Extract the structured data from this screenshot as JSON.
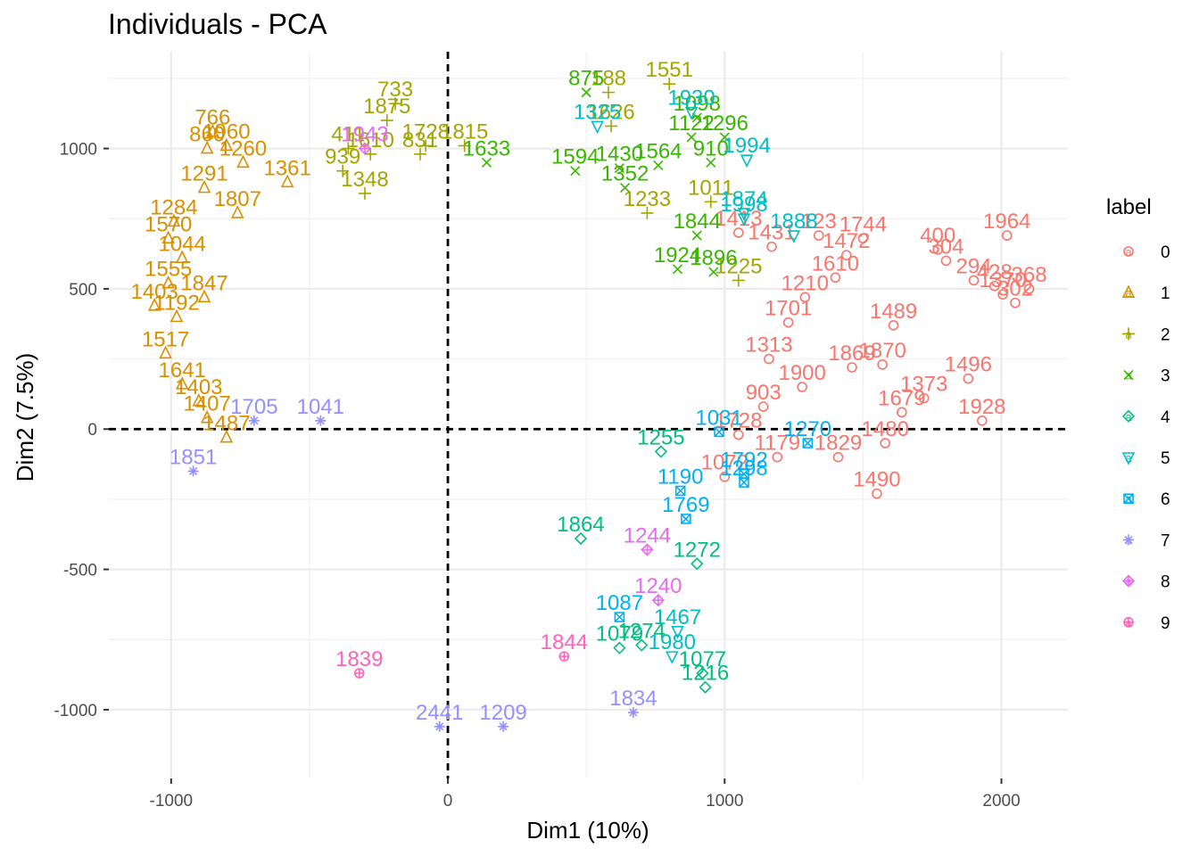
{
  "chart_data": {
    "type": "scatter",
    "title": "Individuals - PCA",
    "xlabel": "Dim1 (10%)",
    "ylabel": "Dim2 (7.5%)",
    "xlim": [
      -1225,
      2240
    ],
    "ylim": [
      -1245,
      1345
    ],
    "x_ticks": [
      -1000,
      0,
      1000,
      2000
    ],
    "y_ticks": [
      -1000,
      -500,
      0,
      500,
      1000
    ],
    "grid": true,
    "reference_lines": {
      "x": 0,
      "y": 0,
      "style": "dashed"
    },
    "legend": {
      "title": "label",
      "position": "right",
      "entries": [
        {
          "name": "0",
          "color": "#F8766D",
          "symbol": "circle"
        },
        {
          "name": "1",
          "color": "#D89000",
          "symbol": "triangle"
        },
        {
          "name": "2",
          "color": "#A3A500",
          "symbol": "plus"
        },
        {
          "name": "3",
          "color": "#39B600",
          "symbol": "cross"
        },
        {
          "name": "4",
          "color": "#00BF7D",
          "symbol": "diamond"
        },
        {
          "name": "5",
          "color": "#00BFC4",
          "symbol": "triangle-down"
        },
        {
          "name": "6",
          "color": "#00B0F6",
          "symbol": "square-cross"
        },
        {
          "name": "7",
          "color": "#9590FF",
          "symbol": "asterisk"
        },
        {
          "name": "8",
          "color": "#E76BF3",
          "symbol": "diamond-plus"
        },
        {
          "name": "9",
          "color": "#FF62BC",
          "symbol": "circle-plus"
        }
      ]
    },
    "points": [
      {
        "id": "1964",
        "x": 2020,
        "y": 690,
        "series": "0"
      },
      {
        "id": "400",
        "x": 1770,
        "y": 640,
        "series": "0"
      },
      {
        "id": "304",
        "x": 1800,
        "y": 600,
        "series": "0"
      },
      {
        "id": "294",
        "x": 1900,
        "y": 530,
        "series": "0"
      },
      {
        "id": "428",
        "x": 1975,
        "y": 510,
        "series": "0"
      },
      {
        "id": "368",
        "x": 2100,
        "y": 500,
        "series": "0"
      },
      {
        "id": "1370",
        "x": 2005,
        "y": 480,
        "series": "0"
      },
      {
        "id": "302",
        "x": 2050,
        "y": 450,
        "series": "0"
      },
      {
        "id": "1496",
        "x": 1880,
        "y": 180,
        "series": "0"
      },
      {
        "id": "1928",
        "x": 1930,
        "y": 30,
        "series": "0"
      },
      {
        "id": "1373",
        "x": 1720,
        "y": 110,
        "series": "0"
      },
      {
        "id": "1679",
        "x": 1640,
        "y": 60,
        "series": "0"
      },
      {
        "id": "1480",
        "x": 1580,
        "y": -50,
        "series": "0"
      },
      {
        "id": "1490",
        "x": 1550,
        "y": -230,
        "series": "0"
      },
      {
        "id": "1829",
        "x": 1410,
        "y": -100,
        "series": "0"
      },
      {
        "id": "1489",
        "x": 1610,
        "y": 370,
        "series": "0"
      },
      {
        "id": "1870",
        "x": 1570,
        "y": 230,
        "series": "0"
      },
      {
        "id": "1869",
        "x": 1460,
        "y": 220,
        "series": "0"
      },
      {
        "id": "123",
        "x": 1340,
        "y": 690,
        "series": "0"
      },
      {
        "id": "1744",
        "x": 1500,
        "y": 680,
        "series": "0"
      },
      {
        "id": "1472",
        "x": 1440,
        "y": 620,
        "series": "0"
      },
      {
        "id": "1900",
        "x": 1280,
        "y": 150,
        "series": "0"
      },
      {
        "id": "1431",
        "x": 1170,
        "y": 650,
        "series": "0"
      },
      {
        "id": "1413",
        "x": 1050,
        "y": 700,
        "series": "0"
      },
      {
        "id": "1210",
        "x": 1290,
        "y": 470,
        "series": "0"
      },
      {
        "id": "1610",
        "x": 1400,
        "y": 540,
        "series": "0"
      },
      {
        "id": "1701",
        "x": 1230,
        "y": 380,
        "series": "0"
      },
      {
        "id": "1313",
        "x": 1160,
        "y": 250,
        "series": "0"
      },
      {
        "id": "903",
        "x": 1140,
        "y": 80,
        "series": "0"
      },
      {
        "id": "1728",
        "x": 1050,
        "y": -20,
        "series": "0"
      },
      {
        "id": "1179",
        "x": 1190,
        "y": -100,
        "series": "0"
      },
      {
        "id": "1072",
        "x": 1000,
        "y": -170,
        "series": "0"
      },
      {
        "id": "766",
        "x": -850,
        "y": 1060,
        "series": "1"
      },
      {
        "id": "1960",
        "x": -800,
        "y": 1010,
        "series": "1"
      },
      {
        "id": "860",
        "x": -870,
        "y": 1000,
        "series": "1"
      },
      {
        "id": "1260",
        "x": -740,
        "y": 950,
        "series": "1"
      },
      {
        "id": "1361",
        "x": -580,
        "y": 880,
        "series": "1"
      },
      {
        "id": "1291",
        "x": -880,
        "y": 860,
        "series": "1"
      },
      {
        "id": "1807",
        "x": -760,
        "y": 770,
        "series": "1"
      },
      {
        "id": "1284",
        "x": -990,
        "y": 740,
        "series": "1"
      },
      {
        "id": "1570",
        "x": -1010,
        "y": 680,
        "series": "1"
      },
      {
        "id": "1044",
        "x": -960,
        "y": 610,
        "series": "1"
      },
      {
        "id": "1555",
        "x": -1010,
        "y": 520,
        "series": "1"
      },
      {
        "id": "1847",
        "x": -880,
        "y": 470,
        "series": "1"
      },
      {
        "id": "1403",
        "x": -1060,
        "y": 440,
        "series": "1"
      },
      {
        "id": "1192",
        "x": -980,
        "y": 400,
        "series": "1"
      },
      {
        "id": "1517",
        "x": -1020,
        "y": 270,
        "series": "1"
      },
      {
        "id": "1641",
        "x": -960,
        "y": 160,
        "series": "1"
      },
      {
        "id": "1403b",
        "x": -900,
        "y": 100,
        "series": "1"
      },
      {
        "id": "1407",
        "x": -870,
        "y": 40,
        "series": "1"
      },
      {
        "id": "1487",
        "x": -800,
        "y": -30,
        "series": "1"
      },
      {
        "id": "733",
        "x": -190,
        "y": 1160,
        "series": "2"
      },
      {
        "id": "1875",
        "x": -220,
        "y": 1100,
        "series": "2"
      },
      {
        "id": "411",
        "x": -360,
        "y": 1000,
        "series": "2"
      },
      {
        "id": "1610b",
        "x": -280,
        "y": 980,
        "series": "2"
      },
      {
        "id": "1728b",
        "x": -80,
        "y": 1010,
        "series": "2"
      },
      {
        "id": "1815",
        "x": 60,
        "y": 1010,
        "series": "2"
      },
      {
        "id": "831",
        "x": -100,
        "y": 980,
        "series": "2"
      },
      {
        "id": "939",
        "x": -380,
        "y": 920,
        "series": "2"
      },
      {
        "id": "1551",
        "x": 800,
        "y": 1230,
        "series": "2"
      },
      {
        "id": "188",
        "x": 580,
        "y": 1200,
        "series": "2"
      },
      {
        "id": "1626",
        "x": 590,
        "y": 1080,
        "series": "2"
      },
      {
        "id": "1348",
        "x": -300,
        "y": 840,
        "series": "2"
      },
      {
        "id": "1011",
        "x": 950,
        "y": 810,
        "series": "2"
      },
      {
        "id": "1233",
        "x": 720,
        "y": 770,
        "series": "2"
      },
      {
        "id": "1225",
        "x": 1050,
        "y": 530,
        "series": "2"
      },
      {
        "id": "875",
        "x": 500,
        "y": 1200,
        "series": "3"
      },
      {
        "id": "1098",
        "x": 900,
        "y": 1110,
        "series": "3"
      },
      {
        "id": "1122",
        "x": 880,
        "y": 1040,
        "series": "3"
      },
      {
        "id": "1296",
        "x": 1000,
        "y": 1040,
        "series": "3"
      },
      {
        "id": "910",
        "x": 950,
        "y": 950,
        "series": "3"
      },
      {
        "id": "1564",
        "x": 760,
        "y": 940,
        "series": "3"
      },
      {
        "id": "1430",
        "x": 620,
        "y": 930,
        "series": "3"
      },
      {
        "id": "1594",
        "x": 460,
        "y": 920,
        "series": "3"
      },
      {
        "id": "1633",
        "x": 140,
        "y": 950,
        "series": "3"
      },
      {
        "id": "1352",
        "x": 640,
        "y": 860,
        "series": "3"
      },
      {
        "id": "1844",
        "x": 900,
        "y": 690,
        "series": "3"
      },
      {
        "id": "1896",
        "x": 960,
        "y": 560,
        "series": "3"
      },
      {
        "id": "1924",
        "x": 830,
        "y": 570,
        "series": "3"
      },
      {
        "id": "1272",
        "x": 900,
        "y": -480,
        "series": "4"
      },
      {
        "id": "1077",
        "x": 920,
        "y": -870,
        "series": "4"
      },
      {
        "id": "1216",
        "x": 930,
        "y": -920,
        "series": "4"
      },
      {
        "id": "1864",
        "x": 480,
        "y": -390,
        "series": "4"
      },
      {
        "id": "1079",
        "x": 620,
        "y": -780,
        "series": "4"
      },
      {
        "id": "1274",
        "x": 700,
        "y": -770,
        "series": "4"
      },
      {
        "id": "1255",
        "x": 770,
        "y": -80,
        "series": "4"
      },
      {
        "id": "1930",
        "x": 880,
        "y": 1130,
        "series": "5"
      },
      {
        "id": "1325",
        "x": 540,
        "y": 1080,
        "series": "5"
      },
      {
        "id": "1994",
        "x": 1080,
        "y": 960,
        "series": "5"
      },
      {
        "id": "1874",
        "x": 1070,
        "y": 770,
        "series": "5"
      },
      {
        "id": "1998",
        "x": 1070,
        "y": 750,
        "series": "5"
      },
      {
        "id": "1888",
        "x": 1250,
        "y": 690,
        "series": "5"
      },
      {
        "id": "1467",
        "x": 830,
        "y": -720,
        "series": "5"
      },
      {
        "id": "1980",
        "x": 810,
        "y": -810,
        "series": "5"
      },
      {
        "id": "1031",
        "x": 980,
        "y": -10,
        "series": "6"
      },
      {
        "id": "1792",
        "x": 1070,
        "y": -160,
        "series": "6"
      },
      {
        "id": "1298",
        "x": 1070,
        "y": -190,
        "series": "6"
      },
      {
        "id": "1270",
        "x": 1300,
        "y": -50,
        "series": "6"
      },
      {
        "id": "1190",
        "x": 840,
        "y": -220,
        "series": "6"
      },
      {
        "id": "1769",
        "x": 860,
        "y": -320,
        "series": "6"
      },
      {
        "id": "1087",
        "x": 620,
        "y": -670,
        "series": "6"
      },
      {
        "id": "2441",
        "x": -30,
        "y": -1060,
        "series": "7"
      },
      {
        "id": "1209",
        "x": 200,
        "y": -1060,
        "series": "7"
      },
      {
        "id": "1834",
        "x": 670,
        "y": -1010,
        "series": "7"
      },
      {
        "id": "1851",
        "x": -920,
        "y": -150,
        "series": "7"
      },
      {
        "id": "1705",
        "x": -700,
        "y": 30,
        "series": "7"
      },
      {
        "id": "1041",
        "x": -460,
        "y": 30,
        "series": "7"
      },
      {
        "id": "1240",
        "x": 760,
        "y": -610,
        "series": "8"
      },
      {
        "id": "1244",
        "x": 720,
        "y": -430,
        "series": "8"
      },
      {
        "id": "1943",
        "x": -300,
        "y": 1000,
        "series": "8"
      },
      {
        "id": "1839",
        "x": -320,
        "y": -870,
        "series": "9"
      },
      {
        "id": "1844b",
        "x": 420,
        "y": -810,
        "series": "9"
      }
    ]
  }
}
